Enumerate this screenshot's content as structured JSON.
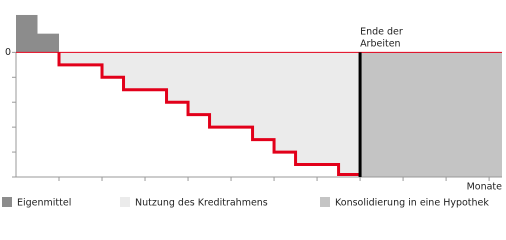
{
  "chart_data": {
    "type": "step",
    "x_label": "Monate",
    "xlim": [
      0,
      11.3
    ],
    "xminor_ticks": [
      1,
      2,
      3,
      4,
      5,
      6,
      7,
      8,
      9,
      10,
      11
    ],
    "ylim": [
      -5,
      1.9
    ],
    "yticks": [
      0
    ],
    "yminor_ticks": [
      -1,
      -2,
      -3,
      -4,
      -5
    ],
    "zero_line_color": "#e2001a",
    "series": [
      {
        "name": "Eigenmittel",
        "color": "#8c8c8c",
        "bins": [
          0,
          0.5,
          1
        ],
        "values": [
          1.5,
          0.75
        ]
      },
      {
        "name": "Nutzung des Kreditrahmens",
        "color": "#ebebeb",
        "line_color": "#e2001a",
        "x": [
          1,
          1,
          2,
          2,
          2.5,
          2.5,
          3.5,
          3.5,
          4,
          4,
          4.5,
          4.5,
          5.5,
          5.5,
          6,
          6,
          6.5,
          6.5,
          7.5,
          7.5,
          8
        ],
        "values": [
          0,
          -0.5,
          -0.5,
          -1,
          -1,
          -1.5,
          -1.5,
          -2,
          -2,
          -2.5,
          -2.5,
          -3,
          -3,
          -3.5,
          -3.5,
          -4,
          -4,
          -4.5,
          -4.5,
          -4.9,
          -4.9
        ]
      },
      {
        "name": "Konsolidierung in eine Hypothek",
        "color": "#c4c4c4",
        "x": [
          8,
          11.3
        ]
      }
    ],
    "annotation": {
      "lines": [
        "Ende der",
        "Arbeiten"
      ],
      "x": 8,
      "color": "#000000"
    }
  }
}
